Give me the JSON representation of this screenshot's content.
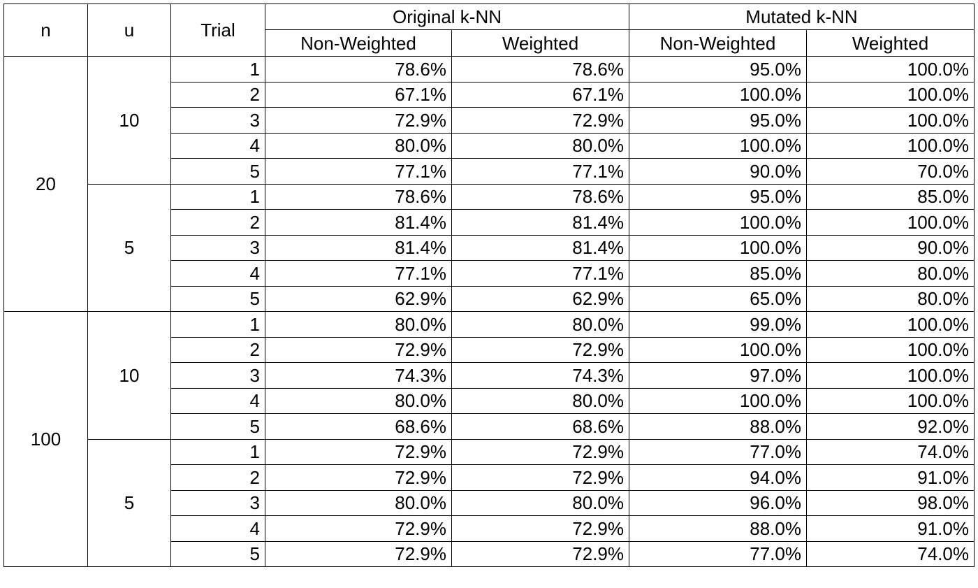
{
  "table": {
    "headers": {
      "n": "n",
      "u": "u",
      "trial": "Trial",
      "original_group": "Original k-NN",
      "mutated_group": "Mutated k-NN",
      "non_weighted": "Non-Weighted",
      "weighted": "Weighted"
    },
    "groups": [
      {
        "n": "20",
        "blocks": [
          {
            "u": "10",
            "rows": [
              {
                "trial": "1",
                "orig_nw": "78.6%",
                "orig_w": "78.6%",
                "mut_nw": "95.0%",
                "mut_w": "100.0%"
              },
              {
                "trial": "2",
                "orig_nw": "67.1%",
                "orig_w": "67.1%",
                "mut_nw": "100.0%",
                "mut_w": "100.0%"
              },
              {
                "trial": "3",
                "orig_nw": "72.9%",
                "orig_w": "72.9%",
                "mut_nw": "95.0%",
                "mut_w": "100.0%"
              },
              {
                "trial": "4",
                "orig_nw": "80.0%",
                "orig_w": "80.0%",
                "mut_nw": "100.0%",
                "mut_w": "100.0%"
              },
              {
                "trial": "5",
                "orig_nw": "77.1%",
                "orig_w": "77.1%",
                "mut_nw": "90.0%",
                "mut_w": "70.0%"
              }
            ]
          },
          {
            "u": "5",
            "rows": [
              {
                "trial": "1",
                "orig_nw": "78.6%",
                "orig_w": "78.6%",
                "mut_nw": "95.0%",
                "mut_w": "85.0%"
              },
              {
                "trial": "2",
                "orig_nw": "81.4%",
                "orig_w": "81.4%",
                "mut_nw": "100.0%",
                "mut_w": "100.0%"
              },
              {
                "trial": "3",
                "orig_nw": "81.4%",
                "orig_w": "81.4%",
                "mut_nw": "100.0%",
                "mut_w": "90.0%"
              },
              {
                "trial": "4",
                "orig_nw": "77.1%",
                "orig_w": "77.1%",
                "mut_nw": "85.0%",
                "mut_w": "80.0%"
              },
              {
                "trial": "5",
                "orig_nw": "62.9%",
                "orig_w": "62.9%",
                "mut_nw": "65.0%",
                "mut_w": "80.0%"
              }
            ]
          }
        ]
      },
      {
        "n": "100",
        "blocks": [
          {
            "u": "10",
            "rows": [
              {
                "trial": "1",
                "orig_nw": "80.0%",
                "orig_w": "80.0%",
                "mut_nw": "99.0%",
                "mut_w": "100.0%"
              },
              {
                "trial": "2",
                "orig_nw": "72.9%",
                "orig_w": "72.9%",
                "mut_nw": "100.0%",
                "mut_w": "100.0%"
              },
              {
                "trial": "3",
                "orig_nw": "74.3%",
                "orig_w": "74.3%",
                "mut_nw": "97.0%",
                "mut_w": "100.0%"
              },
              {
                "trial": "4",
                "orig_nw": "80.0%",
                "orig_w": "80.0%",
                "mut_nw": "100.0%",
                "mut_w": "100.0%"
              },
              {
                "trial": "5",
                "orig_nw": "68.6%",
                "orig_w": "68.6%",
                "mut_nw": "88.0%",
                "mut_w": "92.0%"
              }
            ]
          },
          {
            "u": "5",
            "rows": [
              {
                "trial": "1",
                "orig_nw": "72.9%",
                "orig_w": "72.9%",
                "mut_nw": "77.0%",
                "mut_w": "74.0%"
              },
              {
                "trial": "2",
                "orig_nw": "72.9%",
                "orig_w": "72.9%",
                "mut_nw": "94.0%",
                "mut_w": "91.0%"
              },
              {
                "trial": "3",
                "orig_nw": "80.0%",
                "orig_w": "80.0%",
                "mut_nw": "96.0%",
                "mut_w": "98.0%"
              },
              {
                "trial": "4",
                "orig_nw": "72.9%",
                "orig_w": "72.9%",
                "mut_nw": "88.0%",
                "mut_w": "91.0%"
              },
              {
                "trial": "5",
                "orig_nw": "72.9%",
                "orig_w": "72.9%",
                "mut_nw": "77.0%",
                "mut_w": "74.0%"
              }
            ]
          }
        ]
      }
    ]
  }
}
